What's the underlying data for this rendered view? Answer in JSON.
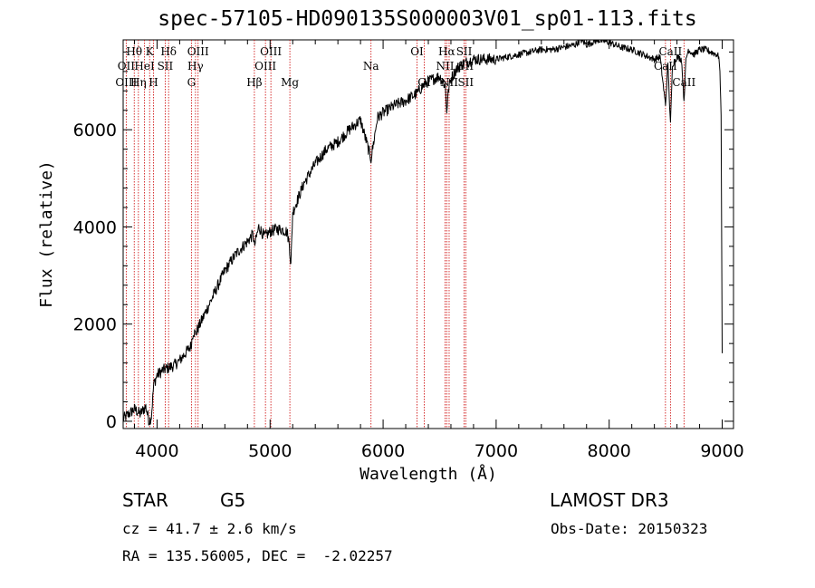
{
  "title": "spec-57105-HD090135S000003V01_sp01-113.fits",
  "chart_data": {
    "type": "line",
    "title": "spec-57105-HD090135S000003V01_sp01-113.fits",
    "xlabel": "Wavelength (Å)",
    "ylabel": "Flux (relative)",
    "xlim": [
      3700,
      9100
    ],
    "ylim": [
      -150,
      7850
    ],
    "xticks": [
      4000,
      5000,
      6000,
      7000,
      8000,
      9000
    ],
    "yticks": [
      0,
      2000,
      4000,
      6000
    ],
    "series": [
      {
        "name": "flux",
        "x": [
          3700,
          3750,
          3800,
          3850,
          3900,
          3930,
          3950,
          3970,
          4000,
          4050,
          4100,
          4150,
          4200,
          4250,
          4300,
          4320,
          4340,
          4400,
          4500,
          4600,
          4700,
          4800,
          4850,
          4861,
          4900,
          4950,
          5000,
          5050,
          5100,
          5150,
          5170,
          5184,
          5200,
          5250,
          5300,
          5400,
          5500,
          5600,
          5700,
          5800,
          5893,
          5950,
          6000,
          6100,
          6200,
          6300,
          6350,
          6400,
          6450,
          6500,
          6550,
          6563,
          6580,
          6600,
          6650,
          6700,
          6800,
          6900,
          7000,
          7100,
          7200,
          7300,
          7400,
          7500,
          7600,
          7700,
          7750,
          7800,
          7850,
          7900,
          8000,
          8100,
          8200,
          8300,
          8400,
          8450,
          8498,
          8520,
          8542,
          8560,
          8600,
          8640,
          8662,
          8680,
          8700,
          8750,
          8800,
          8850,
          8900,
          8950,
          8970,
          8980,
          8990,
          9000
        ],
        "y": [
          50,
          150,
          250,
          150,
          300,
          0,
          100,
          750,
          950,
          1050,
          1100,
          1150,
          1250,
          1400,
          1550,
          1850,
          1800,
          2100,
          2600,
          3100,
          3450,
          3700,
          3850,
          3600,
          4000,
          3800,
          3900,
          3950,
          3950,
          3900,
          3650,
          3200,
          4300,
          4600,
          4900,
          5300,
          5600,
          5750,
          6000,
          6200,
          5400,
          6250,
          6350,
          6500,
          6600,
          6750,
          6900,
          7000,
          7050,
          7100,
          6900,
          6400,
          6850,
          7050,
          7250,
          7350,
          7450,
          7450,
          7450,
          7500,
          7550,
          7600,
          7650,
          7650,
          7700,
          7750,
          7850,
          7750,
          7800,
          7850,
          7800,
          7700,
          7650,
          7550,
          7450,
          7500,
          6500,
          7350,
          6100,
          7350,
          7500,
          7450,
          6600,
          7450,
          7650,
          7550,
          7650,
          7650,
          7600,
          7550,
          7500,
          7200,
          6300,
          1400
        ]
      }
    ],
    "line_labels": [
      {
        "label": "Hθ",
        "wl": 3798,
        "row": 0
      },
      {
        "label": "OII",
        "wl": 3727,
        "row": 1
      },
      {
        "label": "OIII",
        "wl": 3727,
        "row": 2
      },
      {
        "label": "K",
        "wl": 3934,
        "row": 0
      },
      {
        "label": "HeI",
        "wl": 3889,
        "row": 1
      },
      {
        "label": "Hη",
        "wl": 3835,
        "row": 2
      },
      {
        "label": "Hδ",
        "wl": 4102,
        "row": 0
      },
      {
        "label": "SII",
        "wl": 4072,
        "row": 1
      },
      {
        "label": "H",
        "wl": 3968,
        "row": 2
      },
      {
        "label": "OIII",
        "wl": 4363,
        "row": 0
      },
      {
        "label": "Hγ",
        "wl": 4340,
        "row": 1
      },
      {
        "label": "G",
        "wl": 4304,
        "row": 2
      },
      {
        "label": "OIII",
        "wl": 5007,
        "row": 0
      },
      {
        "label": "OIII",
        "wl": 4959,
        "row": 1
      },
      {
        "label": "Hβ",
        "wl": 4861,
        "row": 2
      },
      {
        "label": "Mg",
        "wl": 5175,
        "row": 2
      },
      {
        "label": "Na",
        "wl": 5893,
        "row": 1
      },
      {
        "label": "OI",
        "wl": 6300,
        "row": 0
      },
      {
        "label": "OI",
        "wl": 6364,
        "row": 2
      },
      {
        "label": "Hα",
        "wl": 6563,
        "row": 0
      },
      {
        "label": "SII",
        "wl": 6717,
        "row": 0
      },
      {
        "label": "NII",
        "wl": 6548,
        "row": 1
      },
      {
        "label": "SII",
        "wl": 6731,
        "row": 1
      },
      {
        "label": "NII",
        "wl": 6584,
        "row": 2
      },
      {
        "label": "SII",
        "wl": 6731,
        "row": 2
      },
      {
        "label": "CaII",
        "wl": 8542,
        "row": 0
      },
      {
        "label": "CaII",
        "wl": 8498,
        "row": 1
      },
      {
        "label": "CaII",
        "wl": 8662,
        "row": 2
      }
    ]
  },
  "info": {
    "object_class": "STAR",
    "subclass": "G5",
    "survey": "LAMOST DR3",
    "cz": "cz = 41.7 ± 2.6 km/s",
    "obs_date": "Obs-Date: 20150323",
    "coords": "RA = 135.56005, DEC =  -2.02257"
  },
  "colors": {
    "line_marker": "#cc0000",
    "spectrum": "#000000"
  }
}
